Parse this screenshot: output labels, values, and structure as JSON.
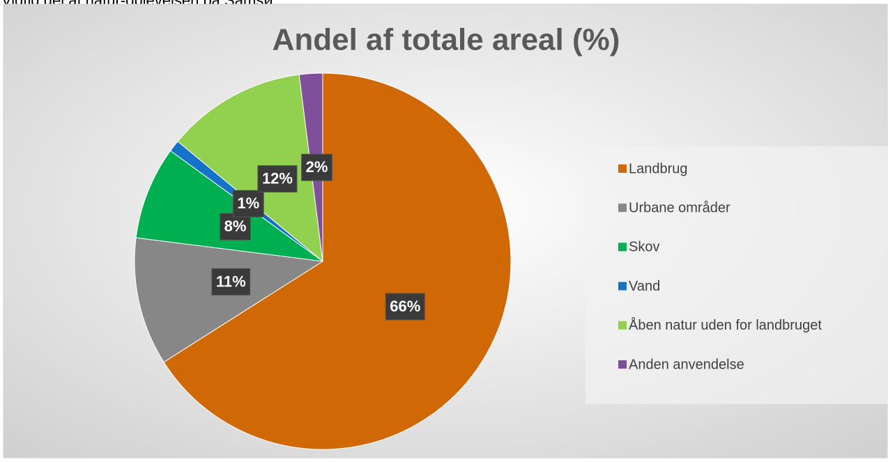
{
  "page_text": "Vigtig del af natur-oplevelsen på Samsø.",
  "chart_data": {
    "type": "pie",
    "title": "Andel af totale areal (%)",
    "categories": [
      "Landbrug",
      "Urbane områder",
      "Skov",
      "Vand",
      "Åben natur uden for landbruget",
      "Anden anvendelse"
    ],
    "values": [
      66,
      11,
      8,
      1,
      12,
      2
    ],
    "value_labels": [
      "66%",
      "11%",
      "8%",
      "1%",
      "12%",
      "2%"
    ],
    "colors": [
      "#d06806",
      "#878787",
      "#00b050",
      "#1473c6",
      "#92d050",
      "#7f4f9a"
    ],
    "legend": "right"
  }
}
